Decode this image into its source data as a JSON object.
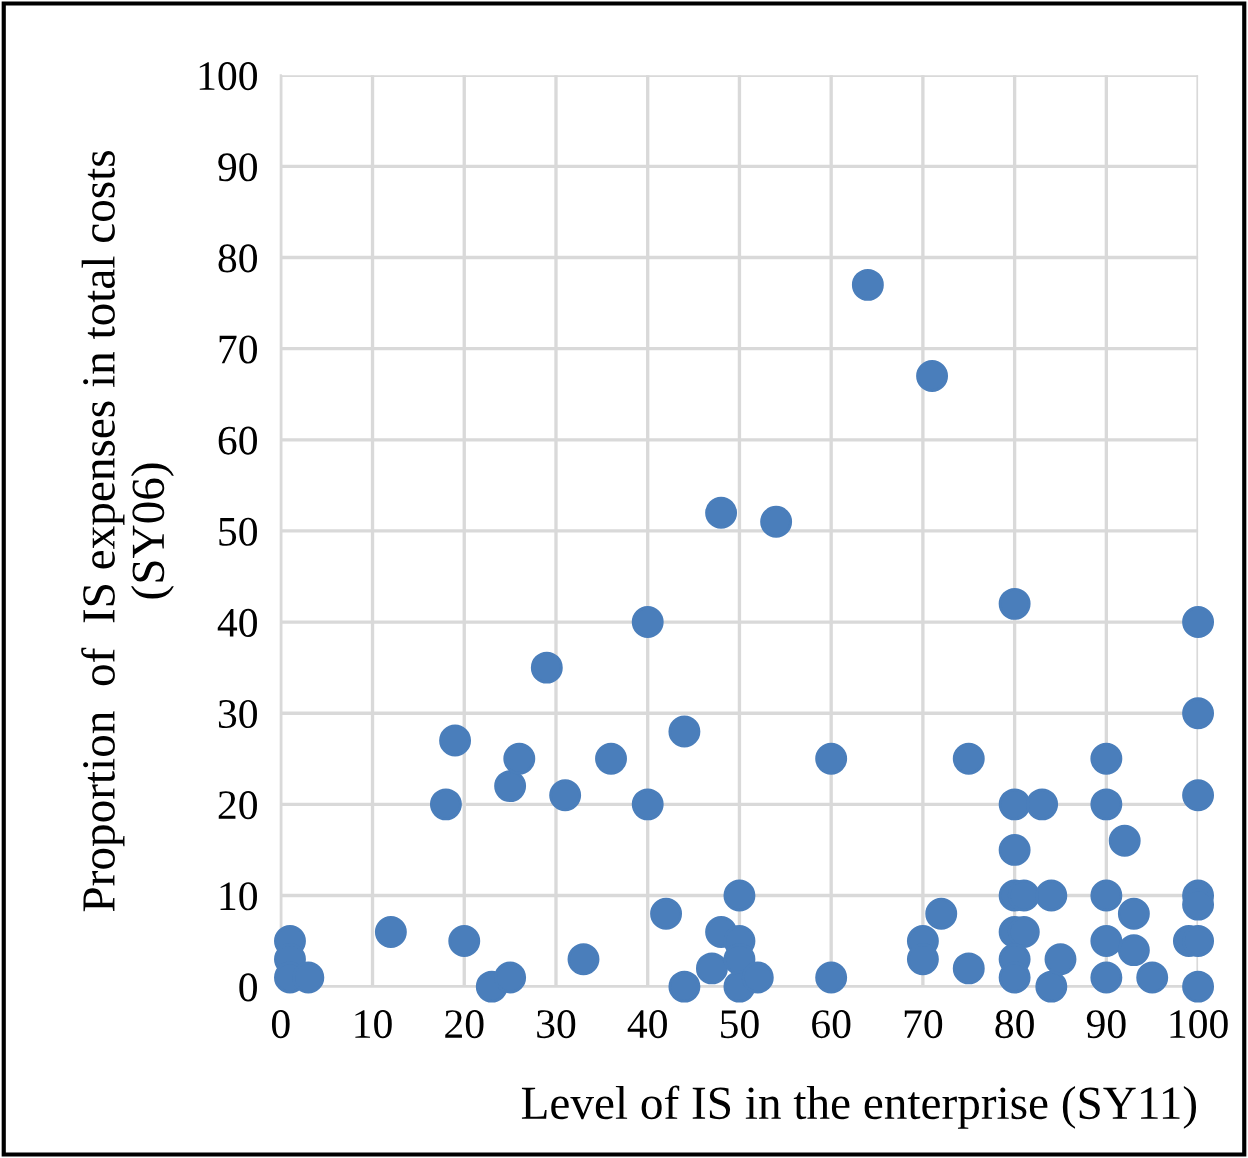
{
  "chart_data": {
    "type": "scatter",
    "xlabel": "Level of IS in the enterprise (SY11)",
    "ylabel": "Proportion  of  IS expenses in total costs\n(SY06)",
    "xlim": [
      0,
      100
    ],
    "ylim": [
      0,
      100
    ],
    "xticks": [
      0,
      10,
      20,
      30,
      40,
      50,
      60,
      70,
      80,
      90,
      100
    ],
    "yticks": [
      0,
      10,
      20,
      30,
      40,
      50,
      60,
      70,
      80,
      90,
      100
    ],
    "grid": true,
    "marker": "circle",
    "legend": false,
    "series": [
      {
        "color": "#4a7ebb",
        "x": [
          1,
          1,
          1,
          3,
          12,
          18,
          19,
          20,
          23,
          25,
          25,
          26,
          29,
          31,
          33,
          36,
          40,
          40,
          42,
          44,
          44,
          47,
          48,
          48,
          50,
          50,
          50,
          50,
          52,
          54,
          60,
          60,
          64,
          71,
          70,
          70,
          72,
          75,
          75,
          80,
          80,
          80,
          80,
          80,
          81,
          80,
          80,
          81,
          83,
          84,
          84,
          85,
          90,
          90,
          90,
          90,
          90,
          92,
          93,
          93,
          95,
          99,
          100,
          100,
          100,
          100,
          100,
          100,
          100
        ],
        "values": [
          5,
          3,
          1,
          1,
          6,
          20,
          27,
          5,
          0,
          1,
          22,
          25,
          35,
          21,
          3,
          25,
          40,
          20,
          8,
          28,
          0,
          2,
          52,
          6,
          10,
          5,
          3,
          0,
          1,
          51,
          25,
          1,
          77,
          67,
          5,
          3,
          8,
          25,
          2,
          42,
          20,
          15,
          10,
          6,
          6,
          3,
          1,
          10,
          20,
          10,
          0,
          3,
          25,
          20,
          10,
          5,
          1,
          16,
          8,
          4,
          1,
          5,
          40,
          30,
          21,
          10,
          9,
          5,
          0
        ]
      }
    ]
  }
}
